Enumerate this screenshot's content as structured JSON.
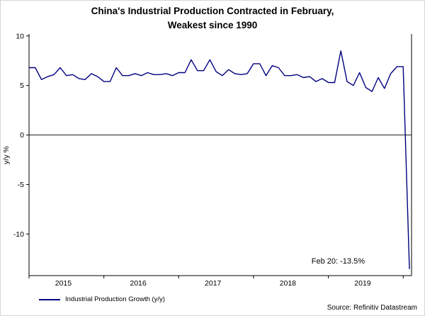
{
  "title": {
    "line1": "China's Industrial Production Contracted in February,",
    "line2": "Weakest since 1990"
  },
  "source": "Source: Refinitiv Datastream",
  "colors": {
    "line": "#000080",
    "axis": "#000000",
    "text": "#000000"
  },
  "chart_data": {
    "type": "line",
    "title": "China's Industrial Production Contracted in February, Weakest since 1990",
    "xlabel": "",
    "ylabel": "y/y %",
    "ylim": [
      -14.2,
      10.2
    ],
    "yticks": [
      10,
      5,
      0,
      -5,
      -10
    ],
    "xtick_labels": [
      "2015",
      "2016",
      "2017",
      "2018",
      "2019"
    ],
    "x_tick_alignment": "year-labels-centered-mid-year",
    "grid": false,
    "zero_line": true,
    "legend_position": "bottom-left",
    "annotation": {
      "label": "Feb 20: -13.5%",
      "x": "2020-02",
      "value": -13.5
    },
    "series": [
      {
        "name": "Industrial Production Growth (y/y)",
        "color": "#000080",
        "x": [
          "2015-01",
          "2015-02",
          "2015-03",
          "2015-04",
          "2015-05",
          "2015-06",
          "2015-07",
          "2015-08",
          "2015-09",
          "2015-10",
          "2015-11",
          "2015-12",
          "2016-01",
          "2016-02",
          "2016-03",
          "2016-04",
          "2016-05",
          "2016-06",
          "2016-07",
          "2016-08",
          "2016-09",
          "2016-10",
          "2016-11",
          "2016-12",
          "2017-01",
          "2017-02",
          "2017-03",
          "2017-04",
          "2017-05",
          "2017-06",
          "2017-07",
          "2017-08",
          "2017-09",
          "2017-10",
          "2017-11",
          "2017-12",
          "2018-01",
          "2018-02",
          "2018-03",
          "2018-04",
          "2018-05",
          "2018-06",
          "2018-07",
          "2018-08",
          "2018-09",
          "2018-10",
          "2018-11",
          "2018-12",
          "2019-01",
          "2019-02",
          "2019-03",
          "2019-04",
          "2019-05",
          "2019-06",
          "2019-07",
          "2019-08",
          "2019-09",
          "2019-10",
          "2019-11",
          "2019-12",
          "2020-01",
          "2020-02"
        ],
        "values": [
          6.8,
          6.8,
          5.6,
          5.9,
          6.1,
          6.8,
          6.0,
          6.1,
          5.7,
          5.6,
          6.2,
          5.9,
          5.4,
          5.4,
          6.8,
          6.0,
          6.0,
          6.2,
          6.0,
          6.3,
          6.1,
          6.1,
          6.2,
          6.0,
          6.3,
          6.3,
          7.6,
          6.5,
          6.5,
          7.6,
          6.4,
          6.0,
          6.6,
          6.2,
          6.1,
          6.2,
          7.2,
          7.2,
          6.0,
          7.0,
          6.8,
          6.0,
          6.0,
          6.1,
          5.8,
          5.9,
          5.4,
          5.7,
          5.3,
          5.3,
          8.5,
          5.4,
          5.0,
          6.3,
          4.8,
          4.4,
          5.8,
          4.7,
          6.2,
          6.9,
          6.9,
          -13.5
        ]
      }
    ]
  }
}
